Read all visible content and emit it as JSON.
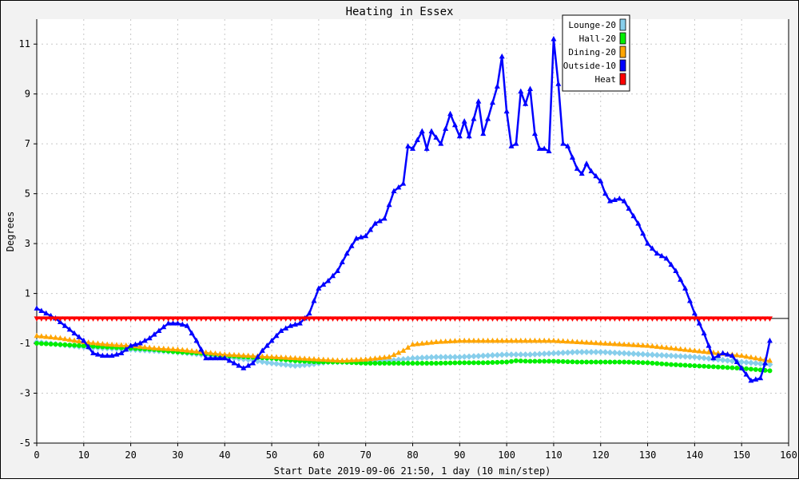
{
  "chart_data": {
    "type": "line",
    "title": "Heating in Essex",
    "xlabel": "Start Date 2019-09-06 21:50, 1 day (10 min/step)",
    "ylabel": "Degrees",
    "xlim": [
      0,
      160
    ],
    "ylim": [
      -5,
      12
    ],
    "x_ticks": [
      "0",
      "10",
      "20",
      "30",
      "40",
      "50",
      "60",
      "70",
      "80",
      "90",
      "100",
      "110",
      "120",
      "130",
      "140",
      "150",
      "160"
    ],
    "y_ticks": [
      "-5",
      "-3",
      "-1",
      "1",
      "3",
      "5",
      "7",
      "9",
      "11"
    ],
    "grid": true,
    "legend_position": "top-right",
    "series": [
      {
        "name": "Lounge-20",
        "color": "#87ceeb",
        "marker": "diamond",
        "points": [
          [
            0,
            -0.95
          ],
          [
            5,
            -1.05
          ],
          [
            10,
            -1.15
          ],
          [
            15,
            -1.2
          ],
          [
            20,
            -1.25
          ],
          [
            25,
            -1.3
          ],
          [
            30,
            -1.35
          ],
          [
            35,
            -1.45
          ],
          [
            40,
            -1.55
          ],
          [
            45,
            -1.65
          ],
          [
            50,
            -1.8
          ],
          [
            55,
            -1.9
          ],
          [
            58,
            -1.85
          ],
          [
            62,
            -1.75
          ],
          [
            70,
            -1.75
          ],
          [
            75,
            -1.7
          ],
          [
            80,
            -1.6
          ],
          [
            85,
            -1.55
          ],
          [
            90,
            -1.55
          ],
          [
            95,
            -1.5
          ],
          [
            100,
            -1.45
          ],
          [
            105,
            -1.45
          ],
          [
            110,
            -1.4
          ],
          [
            115,
            -1.35
          ],
          [
            120,
            -1.35
          ],
          [
            125,
            -1.4
          ],
          [
            130,
            -1.45
          ],
          [
            135,
            -1.5
          ],
          [
            140,
            -1.55
          ],
          [
            145,
            -1.65
          ],
          [
            150,
            -1.75
          ],
          [
            156,
            -1.85
          ]
        ]
      },
      {
        "name": "Hall-20",
        "color": "#00ee00",
        "marker": "circle",
        "points": [
          [
            0,
            -1.0
          ],
          [
            5,
            -1.05
          ],
          [
            10,
            -1.1
          ],
          [
            15,
            -1.15
          ],
          [
            20,
            -1.2
          ],
          [
            25,
            -1.25
          ],
          [
            30,
            -1.35
          ],
          [
            35,
            -1.4
          ],
          [
            40,
            -1.5
          ],
          [
            45,
            -1.55
          ],
          [
            50,
            -1.6
          ],
          [
            55,
            -1.7
          ],
          [
            60,
            -1.75
          ],
          [
            65,
            -1.75
          ],
          [
            70,
            -1.8
          ],
          [
            75,
            -1.8
          ],
          [
            80,
            -1.8
          ],
          [
            85,
            -1.8
          ],
          [
            90,
            -1.78
          ],
          [
            95,
            -1.78
          ],
          [
            100,
            -1.75
          ],
          [
            102,
            -1.7
          ],
          [
            105,
            -1.72
          ],
          [
            110,
            -1.72
          ],
          [
            115,
            -1.75
          ],
          [
            120,
            -1.75
          ],
          [
            125,
            -1.75
          ],
          [
            130,
            -1.78
          ],
          [
            135,
            -1.85
          ],
          [
            140,
            -1.9
          ],
          [
            145,
            -1.95
          ],
          [
            150,
            -2.0
          ],
          [
            156,
            -2.1
          ]
        ]
      },
      {
        "name": "Dining-20",
        "color": "#ffa500",
        "marker": "triangle",
        "points": [
          [
            0,
            -0.7
          ],
          [
            5,
            -0.8
          ],
          [
            10,
            -0.95
          ],
          [
            15,
            -1.05
          ],
          [
            20,
            -1.1
          ],
          [
            25,
            -1.2
          ],
          [
            30,
            -1.25
          ],
          [
            35,
            -1.35
          ],
          [
            40,
            -1.45
          ],
          [
            45,
            -1.5
          ],
          [
            50,
            -1.55
          ],
          [
            55,
            -1.6
          ],
          [
            60,
            -1.65
          ],
          [
            65,
            -1.7
          ],
          [
            70,
            -1.65
          ],
          [
            75,
            -1.55
          ],
          [
            78,
            -1.3
          ],
          [
            80,
            -1.05
          ],
          [
            85,
            -0.95
          ],
          [
            90,
            -0.9
          ],
          [
            95,
            -0.9
          ],
          [
            100,
            -0.9
          ],
          [
            105,
            -0.9
          ],
          [
            110,
            -0.9
          ],
          [
            115,
            -0.95
          ],
          [
            120,
            -1.0
          ],
          [
            125,
            -1.05
          ],
          [
            130,
            -1.1
          ],
          [
            135,
            -1.2
          ],
          [
            140,
            -1.3
          ],
          [
            145,
            -1.4
          ],
          [
            150,
            -1.5
          ],
          [
            156,
            -1.7
          ]
        ]
      },
      {
        "name": "Outside-10",
        "color": "#0000ff",
        "marker": "triangle",
        "points": [
          [
            0,
            0.4
          ],
          [
            2,
            0.2
          ],
          [
            4,
            0.0
          ],
          [
            6,
            -0.3
          ],
          [
            8,
            -0.6
          ],
          [
            10,
            -0.9
          ],
          [
            12,
            -1.4
          ],
          [
            14,
            -1.5
          ],
          [
            16,
            -1.5
          ],
          [
            18,
            -1.4
          ],
          [
            20,
            -1.1
          ],
          [
            22,
            -1.0
          ],
          [
            24,
            -0.8
          ],
          [
            26,
            -0.5
          ],
          [
            28,
            -0.2
          ],
          [
            30,
            -0.2
          ],
          [
            32,
            -0.3
          ],
          [
            34,
            -0.9
          ],
          [
            36,
            -1.6
          ],
          [
            38,
            -1.6
          ],
          [
            40,
            -1.6
          ],
          [
            42,
            -1.8
          ],
          [
            44,
            -2.0
          ],
          [
            46,
            -1.8
          ],
          [
            48,
            -1.3
          ],
          [
            50,
            -0.9
          ],
          [
            52,
            -0.5
          ],
          [
            54,
            -0.3
          ],
          [
            56,
            -0.2
          ],
          [
            58,
            0.2
          ],
          [
            60,
            1.2
          ],
          [
            62,
            1.5
          ],
          [
            64,
            1.9
          ],
          [
            66,
            2.6
          ],
          [
            68,
            3.2
          ],
          [
            70,
            3.3
          ],
          [
            72,
            3.8
          ],
          [
            74,
            4.0
          ],
          [
            76,
            5.1
          ],
          [
            78,
            5.4
          ],
          [
            79,
            6.9
          ],
          [
            80,
            6.8
          ],
          [
            82,
            7.5
          ],
          [
            83,
            6.8
          ],
          [
            84,
            7.5
          ],
          [
            86,
            7.0
          ],
          [
            88,
            8.2
          ],
          [
            90,
            7.3
          ],
          [
            91,
            7.9
          ],
          [
            92,
            7.3
          ],
          [
            94,
            8.7
          ],
          [
            95,
            7.4
          ],
          [
            96,
            8.0
          ],
          [
            98,
            9.3
          ],
          [
            99,
            10.5
          ],
          [
            100,
            8.3
          ],
          [
            101,
            6.9
          ],
          [
            102,
            7.0
          ],
          [
            103,
            9.1
          ],
          [
            104,
            8.6
          ],
          [
            105,
            9.2
          ],
          [
            106,
            7.4
          ],
          [
            107,
            6.8
          ],
          [
            108,
            6.8
          ],
          [
            109,
            6.7
          ],
          [
            110,
            11.2
          ],
          [
            111,
            9.4
          ],
          [
            112,
            7.0
          ],
          [
            113,
            6.9
          ],
          [
            115,
            6.0
          ],
          [
            116,
            5.8
          ],
          [
            117,
            6.2
          ],
          [
            118,
            5.9
          ],
          [
            120,
            5.5
          ],
          [
            121,
            5.0
          ],
          [
            122,
            4.7
          ],
          [
            124,
            4.8
          ],
          [
            125,
            4.7
          ],
          [
            126,
            4.4
          ],
          [
            128,
            3.8
          ],
          [
            130,
            3.0
          ],
          [
            132,
            2.6
          ],
          [
            134,
            2.4
          ],
          [
            136,
            1.9
          ],
          [
            138,
            1.2
          ],
          [
            140,
            0.2
          ],
          [
            142,
            -0.6
          ],
          [
            144,
            -1.6
          ],
          [
            146,
            -1.4
          ],
          [
            148,
            -1.5
          ],
          [
            150,
            -2.0
          ],
          [
            152,
            -2.5
          ],
          [
            154,
            -2.4
          ],
          [
            155,
            -1.8
          ],
          [
            156,
            -0.9
          ]
        ]
      },
      {
        "name": "Heat",
        "color": "#ff0000",
        "marker": "triangle-down",
        "points": [
          [
            0,
            0.0
          ],
          [
            156,
            0.0
          ]
        ]
      }
    ]
  }
}
